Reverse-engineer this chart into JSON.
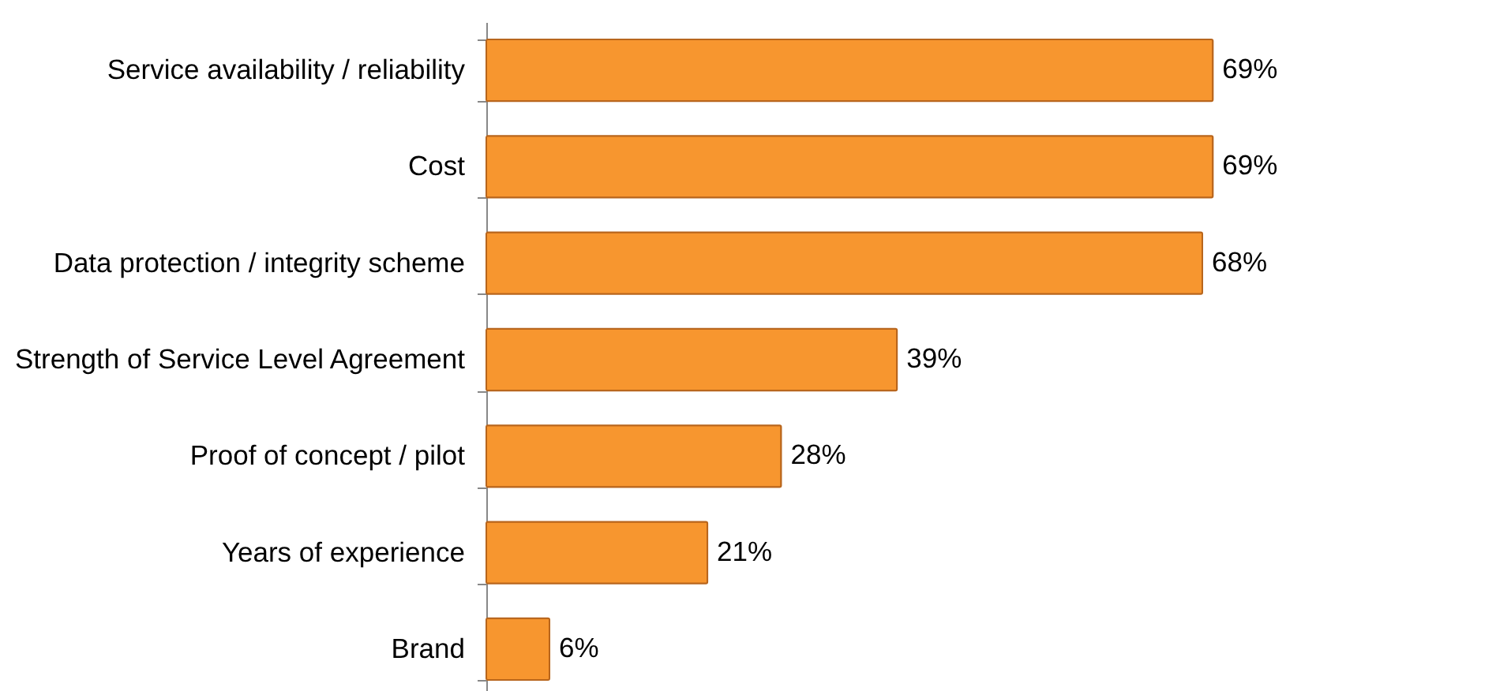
{
  "chart_data": {
    "type": "bar",
    "orientation": "horizontal",
    "categories": [
      "Service availability / reliability",
      "Cost",
      "Data protection / integrity scheme",
      "Strength of Service Level Agreement",
      "Proof of concept / pilot",
      "Years of experience",
      "Brand"
    ],
    "values": [
      69,
      69,
      68,
      39,
      28,
      21,
      6
    ],
    "value_labels": [
      "69%",
      "69%",
      "68%",
      "39%",
      "28%",
      "21%",
      "6%"
    ],
    "color": "#f7962f"
  }
}
